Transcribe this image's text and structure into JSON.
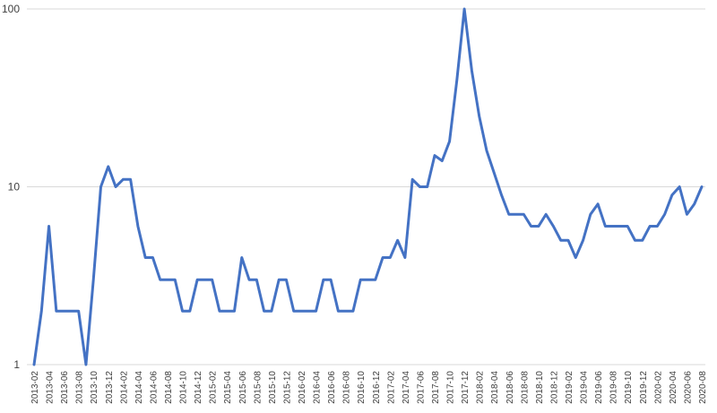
{
  "chart_data": {
    "type": "line",
    "title": "",
    "xlabel": "",
    "ylabel": "",
    "yscale": "log",
    "ylim": [
      1,
      100
    ],
    "yticks": [
      "1",
      "10",
      "100"
    ],
    "grid": true,
    "legend": "none",
    "line_color": "#4472c4",
    "xtick_labels": [
      "2013-02",
      "2013-04",
      "2013-06",
      "2013-08",
      "2013-10",
      "2013-12",
      "2014-02",
      "2014-04",
      "2014-06",
      "2014-08",
      "2014-10",
      "2014-12",
      "2015-02",
      "2015-04",
      "2015-06",
      "2015-08",
      "2015-10",
      "2015-12",
      "2016-02",
      "2016-04",
      "2016-06",
      "2016-08",
      "2016-10",
      "2016-12",
      "2017-02",
      "2017-04",
      "2017-06",
      "2017-08",
      "2017-10",
      "2017-12",
      "2018-02",
      "2018-04",
      "2018-06",
      "2018-08",
      "2018-10",
      "2018-12",
      "2019-02",
      "2019-04",
      "2019-06",
      "2019-08",
      "2019-10",
      "2019-12",
      "2020-02",
      "2020-04",
      "2020-06",
      "2020-08"
    ],
    "series": [
      {
        "values": [
          1,
          2,
          6,
          2,
          2,
          2,
          2,
          1,
          3,
          10,
          13,
          10,
          11,
          11,
          6,
          4,
          4,
          3,
          3,
          3,
          2,
          2,
          3,
          3,
          3,
          2,
          2,
          2,
          4,
          3,
          3,
          2,
          2,
          3,
          3,
          2,
          2,
          2,
          2,
          3,
          3,
          2,
          2,
          2,
          3,
          3,
          3,
          4,
          4,
          5,
          4,
          11,
          10,
          10,
          15,
          14,
          18,
          40,
          100,
          45,
          25,
          16,
          12,
          9,
          7,
          7,
          7,
          6,
          6,
          7,
          6,
          5,
          5,
          4,
          5,
          7,
          8,
          6,
          6,
          6,
          6,
          5,
          5,
          6,
          6,
          7,
          9,
          10,
          7,
          8,
          10
        ]
      }
    ]
  }
}
